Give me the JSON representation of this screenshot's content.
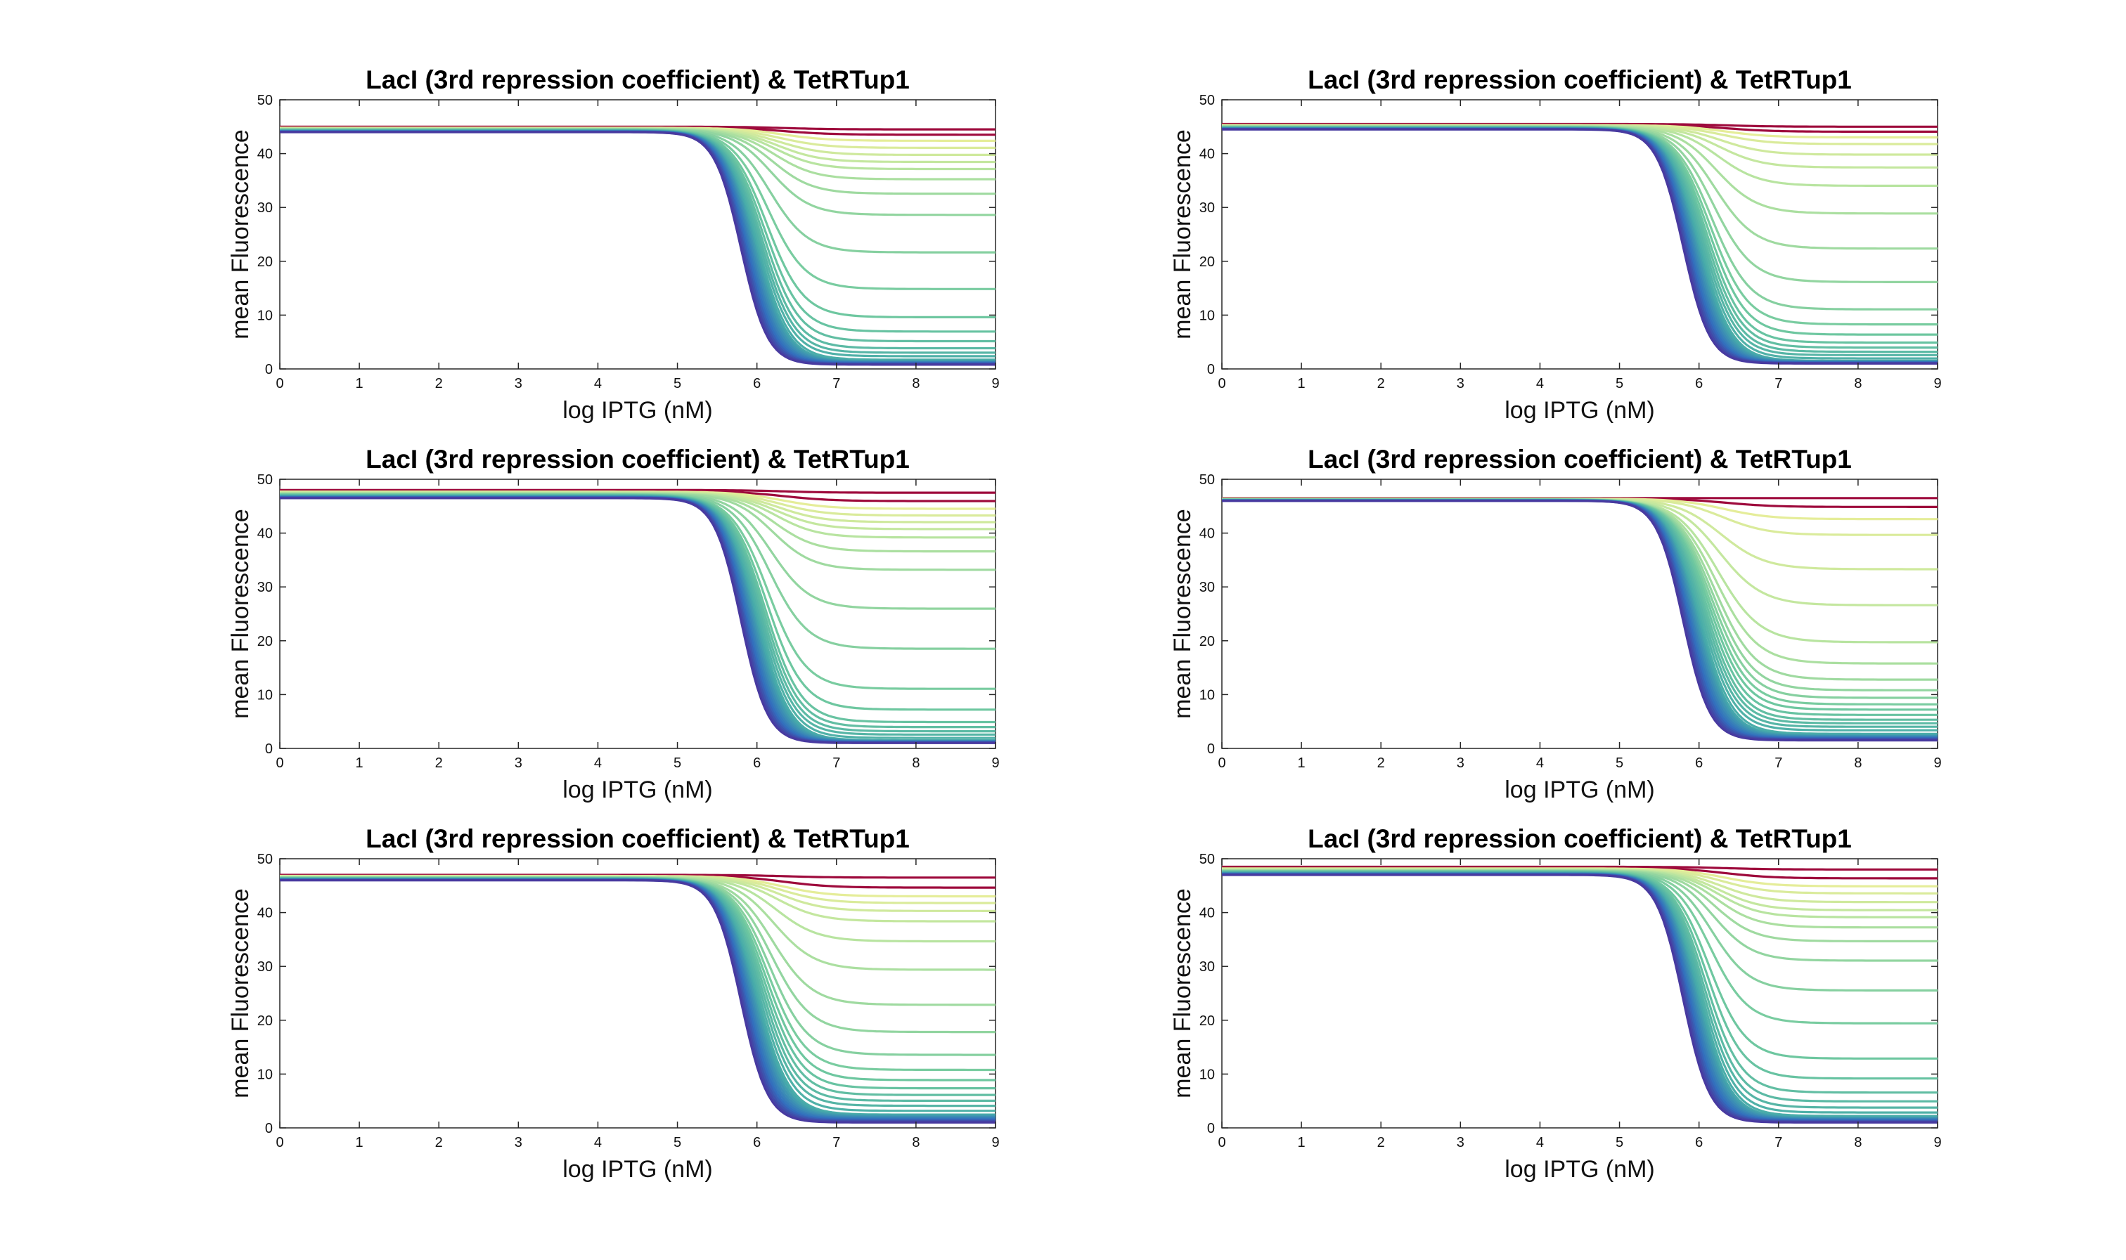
{
  "chart_data": [
    {
      "type": "line",
      "title": "LacI (3rd repression coefficient) & TetRTup1",
      "xlabel": "log IPTG (nM)",
      "ylabel": "mean Fluorescence",
      "xlim": [
        0,
        9
      ],
      "ylim": [
        0,
        50
      ],
      "xticks": [
        0,
        1,
        2,
        3,
        4,
        5,
        6,
        7,
        8,
        9
      ],
      "yticks": [
        0,
        10,
        20,
        30,
        40,
        50
      ],
      "grid": false,
      "colormap": "Spectral (blue to yellow to dark red)",
      "series_count": 30,
      "top_plateau": 45,
      "bottom_plateau": 44,
      "min_final": 0.8,
      "final_values_visible": [
        44.5,
        43,
        41,
        39,
        37,
        34,
        28,
        16.5,
        8.5,
        5.5,
        3.5,
        2.5,
        1.5
      ]
    },
    {
      "type": "line",
      "title": "LacI (3rd repression coefficient) & TetRTup1",
      "xlabel": "log IPTG (nM)",
      "ylabel": "mean Fluorescence",
      "xlim": [
        0,
        9
      ],
      "ylim": [
        0,
        50
      ],
      "xticks": [
        0,
        1,
        2,
        3,
        4,
        5,
        6,
        7,
        8,
        9
      ],
      "yticks": [
        0,
        10,
        20,
        30,
        40,
        50
      ],
      "grid": false,
      "colormap": "Spectral (blue to yellow to dark red)",
      "series_count": 30,
      "top_plateau": 45.5,
      "bottom_plateau": 44.5,
      "min_final": 1,
      "final_values_visible": [
        45,
        43.5,
        41.5,
        38,
        32.5,
        22,
        12,
        7.5,
        5,
        3.5,
        2.5,
        1.5
      ]
    },
    {
      "type": "line",
      "title": "LacI (3rd repression coefficient) & TetRTup1",
      "xlabel": "log IPTG (nM)",
      "ylabel": "mean Fluorescence",
      "xlim": [
        0,
        9
      ],
      "ylim": [
        0,
        50
      ],
      "xticks": [
        0,
        1,
        2,
        3,
        4,
        5,
        6,
        7,
        8,
        9
      ],
      "yticks": [
        0,
        10,
        20,
        30,
        40,
        50
      ],
      "grid": false,
      "colormap": "Spectral (blue to yellow to dark red)",
      "series_count": 30,
      "top_plateau": 48,
      "bottom_plateau": 46.5,
      "min_final": 1,
      "final_values_visible": [
        47.5,
        45,
        43,
        41,
        38.5,
        33,
        21,
        9,
        5,
        3.5,
        2.5,
        1.5
      ]
    },
    {
      "type": "line",
      "title": "LacI (3rd repression coefficient) & TetRTup1",
      "xlabel": "log IPTG (nM)",
      "ylabel": "mean Fluorescence",
      "xlim": [
        0,
        9
      ],
      "ylim": [
        0,
        50
      ],
      "xticks": [
        0,
        1,
        2,
        3,
        4,
        5,
        6,
        7,
        8,
        9
      ],
      "yticks": [
        0,
        10,
        20,
        30,
        40,
        50
      ],
      "grid": false,
      "colormap": "Spectral (blue to yellow to dark red)",
      "series_count": 30,
      "top_plateau": 46.5,
      "bottom_plateau": 46,
      "min_final": 1.5,
      "final_values_visible": [
        46.5,
        44,
        39.5,
        29.5,
        19,
        13.5,
        10.5,
        8.5,
        7,
        5.5,
        4.5,
        3.5,
        2.5
      ]
    },
    {
      "type": "line",
      "title": "LacI (3rd repression coefficient) & TetRTup1",
      "xlabel": "log IPTG (nM)",
      "ylabel": "mean Fluorescence",
      "xlim": [
        0,
        9
      ],
      "ylim": [
        0,
        50
      ],
      "xticks": [
        0,
        1,
        2,
        3,
        4,
        5,
        6,
        7,
        8,
        9
      ],
      "yticks": [
        0,
        10,
        20,
        30,
        40,
        50
      ],
      "grid": false,
      "colormap": "Spectral (blue to yellow to dark red)",
      "series_count": 30,
      "top_plateau": 47,
      "bottom_plateau": 46,
      "min_final": 1,
      "final_values_visible": [
        46.5,
        43.5,
        41.5,
        39,
        33,
        22.5,
        14.5,
        10,
        7.5,
        5.5,
        4,
        2.5
      ]
    },
    {
      "type": "line",
      "title": "LacI (3rd repression coefficient) & TetRTup1",
      "xlabel": "log IPTG (nM)",
      "ylabel": "mean Fluorescence",
      "xlim": [
        0,
        9
      ],
      "ylim": [
        0,
        50
      ],
      "xticks": [
        0,
        1,
        2,
        3,
        4,
        5,
        6,
        7,
        8,
        9
      ],
      "yticks": [
        0,
        10,
        20,
        30,
        40,
        50
      ],
      "grid": false,
      "colormap": "Spectral (blue to yellow to dark red)",
      "series_count": 30,
      "top_plateau": 48.5,
      "bottom_plateau": 47,
      "min_final": 1,
      "final_values_visible": [
        48,
        45.5,
        43.5,
        41,
        39,
        36,
        30.5,
        21.5,
        11.5,
        7,
        4.5,
        3,
        2
      ]
    }
  ]
}
